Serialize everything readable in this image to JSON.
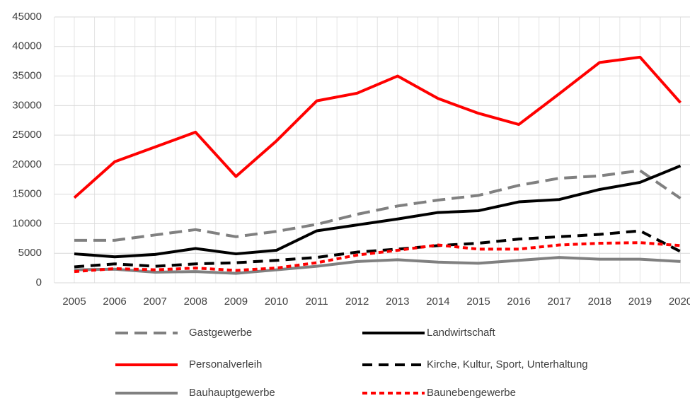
{
  "chart_data": {
    "type": "line",
    "categories": [
      "2005",
      "2006",
      "2007",
      "2008",
      "2009",
      "2010",
      "2011",
      "2012",
      "2013",
      "2014",
      "2015",
      "2016",
      "2017",
      "2018",
      "2019",
      "2020"
    ],
    "ylim": [
      0,
      45000
    ],
    "yticks": [
      0,
      5000,
      10000,
      15000,
      20000,
      25000,
      30000,
      35000,
      40000,
      45000
    ],
    "grid": true,
    "legend": "bottom",
    "series": [
      {
        "name": "Gastgewerbe",
        "color": "#808080",
        "style": "long-dash",
        "values": [
          7200,
          7200,
          8100,
          9000,
          7800,
          8700,
          9900,
          11600,
          13000,
          14000,
          14800,
          16500,
          17700,
          18100,
          19000,
          14300
        ]
      },
      {
        "name": "Landwirtschaft",
        "color": "#000000",
        "style": "solid",
        "values": [
          4900,
          4400,
          4800,
          5800,
          4900,
          5500,
          8800,
          9800,
          10800,
          11900,
          12200,
          13700,
          14100,
          15800,
          17000,
          19800
        ]
      },
      {
        "name": "Personalverleih",
        "color": "#ff0000",
        "style": "solid",
        "values": [
          14400,
          20500,
          23000,
          25500,
          18000,
          24000,
          30800,
          32100,
          35000,
          31200,
          28700,
          26800,
          32000,
          37300,
          38200,
          30500
        ]
      },
      {
        "name": "Kirche, Kultur, Sport, Unterhaltung",
        "color": "#000000",
        "style": "dash",
        "values": [
          2700,
          3200,
          2800,
          3200,
          3400,
          3800,
          4300,
          5200,
          5700,
          6300,
          6700,
          7400,
          7800,
          8200,
          8800,
          5300
        ]
      },
      {
        "name": "Bauhauptgewerbe",
        "color": "#808080",
        "style": "solid",
        "values": [
          2200,
          2300,
          1800,
          1900,
          1600,
          2200,
          2800,
          3600,
          3900,
          3500,
          3300,
          3800,
          4300,
          4000,
          4000,
          3600
        ]
      },
      {
        "name": "Baunebengewerbe",
        "color": "#ff0000",
        "style": "short-dash",
        "values": [
          1900,
          2400,
          2200,
          2500,
          2100,
          2500,
          3400,
          4700,
          5500,
          6400,
          5700,
          5700,
          6400,
          6700,
          6800,
          6300
        ]
      }
    ]
  }
}
